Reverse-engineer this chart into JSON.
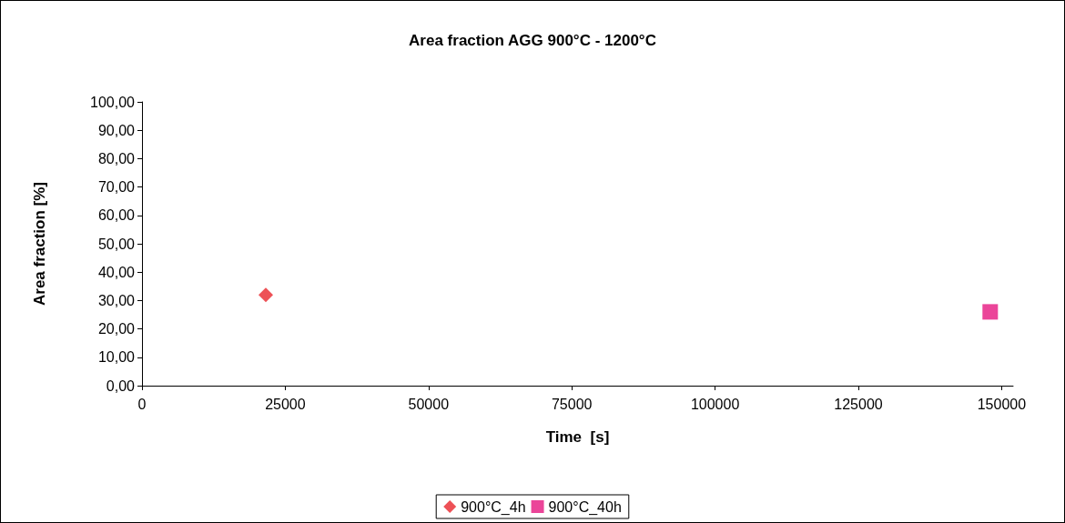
{
  "chart_data": {
    "type": "scatter",
    "title": "Area fraction AGG 900°C - 1200°C",
    "xlabel": "Time  [s]",
    "ylabel": "Area fraction [%]",
    "series": [
      {
        "name": "900°C_4h",
        "color": "#e8262c",
        "marker": "diamond",
        "x": [
          21600
        ],
        "values": [
          32
        ]
      },
      {
        "name": "900°C_40h",
        "color": "#e6177f",
        "marker": "square",
        "x": [
          148000
        ],
        "values": [
          26
        ]
      }
    ],
    "xlim": [
      0,
      152000
    ],
    "xticks": [
      0,
      25000,
      50000,
      75000,
      100000,
      125000,
      150000
    ],
    "ylim": [
      0,
      100
    ],
    "yticks": [
      {
        "value": 0,
        "label": "0,00"
      },
      {
        "value": 10,
        "label": "10,00"
      },
      {
        "value": 20,
        "label": "20,00"
      },
      {
        "value": 30,
        "label": "30,00"
      },
      {
        "value": 40,
        "label": "40,00"
      },
      {
        "value": 50,
        "label": "50,00"
      },
      {
        "value": 60,
        "label": "60,00"
      },
      {
        "value": 70,
        "label": "70,00"
      },
      {
        "value": 80,
        "label": "80,00"
      },
      {
        "value": 90,
        "label": "90,00"
      },
      {
        "value": 100,
        "label": "100,00"
      }
    ],
    "grid": false,
    "legend": "bottom"
  }
}
